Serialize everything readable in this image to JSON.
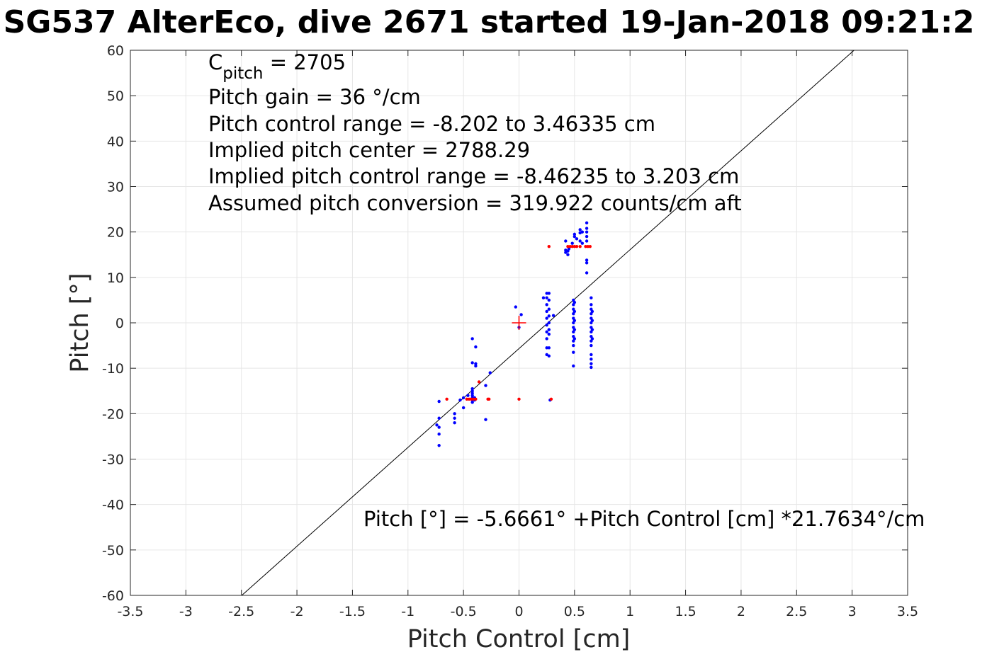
{
  "chart_data": {
    "type": "scatter",
    "title": "SG537 AlterEco, dive 2671 started 19-Jan-2018 09:21:2",
    "xlabel": "Pitch Control [cm]",
    "ylabel": "Pitch [°]",
    "xlim": [
      -3.5,
      3.5
    ],
    "ylim": [
      -60,
      60
    ],
    "x_ticks": [
      -3.5,
      -3,
      -2.5,
      -2,
      -1.5,
      -1,
      -0.5,
      0,
      0.5,
      1,
      1.5,
      2,
      2.5,
      3,
      3.5
    ],
    "y_ticks": [
      -60,
      -50,
      -40,
      -30,
      -20,
      -10,
      0,
      10,
      20,
      30,
      40,
      50,
      60
    ],
    "x_tick_labels": [
      "-3.5",
      "-3",
      "-2.5",
      "-2",
      "-1.5",
      "-1",
      "-0.5",
      "0",
      "0.5",
      "1",
      "1.5",
      "2",
      "2.5",
      "3",
      "3.5"
    ],
    "y_tick_labels": [
      "-60",
      "-50",
      "-40",
      "-30",
      "-20",
      "-10",
      "0",
      "10",
      "20",
      "30",
      "40",
      "50",
      "60"
    ],
    "grid": true,
    "annotations": {
      "c_pitch_label": "C",
      "c_pitch_sub": "pitch",
      "c_pitch_value": " = 2705",
      "lines": [
        "Pitch gain = 36 °/cm",
        "Pitch control range = -8.202 to 3.46335 cm",
        "Implied pitch center = 2788.29",
        "Implied pitch control range = -8.46235 to 3.203 cm",
        "Assumed pitch conversion = 319.922 counts/cm aft"
      ],
      "fit_equation": "Pitch [°] = -5.6661° +Pitch Control [cm] *21.7634°/cm"
    },
    "fit_line": {
      "intercept": -5.6661,
      "slope": 21.7634,
      "color": "#000000"
    },
    "center_marker": {
      "x": 0,
      "y": 0,
      "color": "#ff0000"
    },
    "series": [
      {
        "color": "#0000ff",
        "points": [
          [
            -0.72,
            -17.3
          ],
          [
            -0.72,
            -21
          ],
          [
            -0.72,
            -23
          ],
          [
            -0.72,
            -24.5
          ],
          [
            -0.72,
            -27
          ],
          [
            -0.74,
            -22.5
          ],
          [
            -0.58,
            -20
          ],
          [
            -0.58,
            -21
          ],
          [
            -0.58,
            -22
          ],
          [
            -0.53,
            -17
          ],
          [
            -0.5,
            -16.5
          ],
          [
            -0.5,
            -18.7
          ],
          [
            -0.46,
            -16
          ],
          [
            -0.42,
            -14.5
          ],
          [
            -0.42,
            -15
          ],
          [
            -0.42,
            -15.5
          ],
          [
            -0.42,
            -16
          ],
          [
            -0.42,
            -16.5
          ],
          [
            -0.42,
            -17
          ],
          [
            -0.42,
            -17.5
          ],
          [
            -0.4,
            -16.5
          ],
          [
            -0.4,
            -17
          ],
          [
            -0.42,
            -3.5
          ],
          [
            -0.42,
            -8.8
          ],
          [
            -0.39,
            -5.3
          ],
          [
            -0.39,
            -9
          ],
          [
            -0.39,
            -9.5
          ],
          [
            -0.3,
            -21.3
          ],
          [
            -0.3,
            -13.8
          ],
          [
            -0.26,
            -11
          ],
          [
            0,
            -1
          ],
          [
            0.02,
            1.8
          ],
          [
            -0.03,
            3.5
          ],
          [
            0.22,
            5.5
          ],
          [
            0.28,
            -17
          ],
          [
            0.25,
            6.5
          ],
          [
            0.25,
            5.5
          ],
          [
            0.25,
            4
          ],
          [
            0.25,
            2.5
          ],
          [
            0.25,
            1
          ],
          [
            0.25,
            -0.5
          ],
          [
            0.25,
            -2
          ],
          [
            0.25,
            -3.5
          ],
          [
            0.25,
            -5.5
          ],
          [
            0.25,
            -7
          ],
          [
            0.27,
            6.5
          ],
          [
            0.27,
            5
          ],
          [
            0.27,
            3
          ],
          [
            0.27,
            1.5
          ],
          [
            0.27,
            0
          ],
          [
            0.27,
            -1.5
          ],
          [
            0.27,
            -2.5
          ],
          [
            0.27,
            -5.5
          ],
          [
            0.27,
            -7.3
          ],
          [
            0.31,
            1.6
          ],
          [
            0.49,
            5
          ],
          [
            0.49,
            4
          ],
          [
            0.49,
            3
          ],
          [
            0.49,
            2
          ],
          [
            0.49,
            1
          ],
          [
            0.49,
            0
          ],
          [
            0.49,
            -1
          ],
          [
            0.49,
            -2
          ],
          [
            0.49,
            -3
          ],
          [
            0.49,
            -4
          ],
          [
            0.49,
            -5
          ],
          [
            0.49,
            -6.5
          ],
          [
            0.49,
            -9.5
          ],
          [
            0.5,
            4.5
          ],
          [
            0.5,
            2.5
          ],
          [
            0.5,
            0.5
          ],
          [
            0.5,
            -1.5
          ],
          [
            0.5,
            -3.5
          ],
          [
            0.65,
            5.5
          ],
          [
            0.65,
            4
          ],
          [
            0.65,
            3
          ],
          [
            0.65,
            2
          ],
          [
            0.65,
            1
          ],
          [
            0.65,
            0
          ],
          [
            0.65,
            -1
          ],
          [
            0.65,
            -2
          ],
          [
            0.65,
            -3
          ],
          [
            0.65,
            -4
          ],
          [
            0.65,
            -5
          ],
          [
            0.65,
            -7
          ],
          [
            0.65,
            -8
          ],
          [
            0.65,
            -9
          ],
          [
            0.65,
            -9.8
          ],
          [
            0.66,
            2.5
          ],
          [
            0.66,
            0.5
          ],
          [
            0.66,
            -1.5
          ],
          [
            0.66,
            -3.5
          ],
          [
            0.42,
            18
          ],
          [
            0.42,
            16
          ],
          [
            0.42,
            15.5
          ],
          [
            0.44,
            15
          ],
          [
            0.44,
            15.8
          ],
          [
            0.45,
            16.3
          ],
          [
            0.48,
            17.5
          ],
          [
            0.5,
            19
          ],
          [
            0.5,
            19.5
          ],
          [
            0.52,
            18.5
          ],
          [
            0.55,
            20.5
          ],
          [
            0.55,
            19.8
          ],
          [
            0.55,
            18
          ],
          [
            0.57,
            20
          ],
          [
            0.57,
            17.5
          ],
          [
            0.61,
            22
          ],
          [
            0.61,
            20.8
          ],
          [
            0.61,
            20
          ],
          [
            0.61,
            19
          ],
          [
            0.61,
            18
          ],
          [
            0.61,
            13.8
          ],
          [
            0.61,
            13.2
          ],
          [
            0.61,
            11
          ]
        ]
      },
      {
        "color": "#ff0000",
        "points": [
          [
            -0.65,
            -16.8
          ],
          [
            -0.47,
            -16.8
          ],
          [
            -0.45,
            -16.8
          ],
          [
            -0.43,
            -16.8
          ],
          [
            -0.41,
            -16.8
          ],
          [
            -0.39,
            -16.8
          ],
          [
            -0.36,
            -13
          ],
          [
            -0.28,
            -16.8
          ],
          [
            -0.27,
            -16.8
          ],
          [
            0,
            -16.8
          ],
          [
            0.29,
            -16.8
          ],
          [
            0.27,
            16.8
          ],
          [
            0.44,
            16.8
          ],
          [
            0.46,
            16.8
          ],
          [
            0.48,
            16.8
          ],
          [
            0.5,
            16.8
          ],
          [
            0.52,
            16.8
          ],
          [
            0.55,
            16.8
          ],
          [
            0.6,
            16.8
          ],
          [
            0.62,
            16.8
          ],
          [
            0.64,
            16.8
          ]
        ]
      }
    ]
  }
}
